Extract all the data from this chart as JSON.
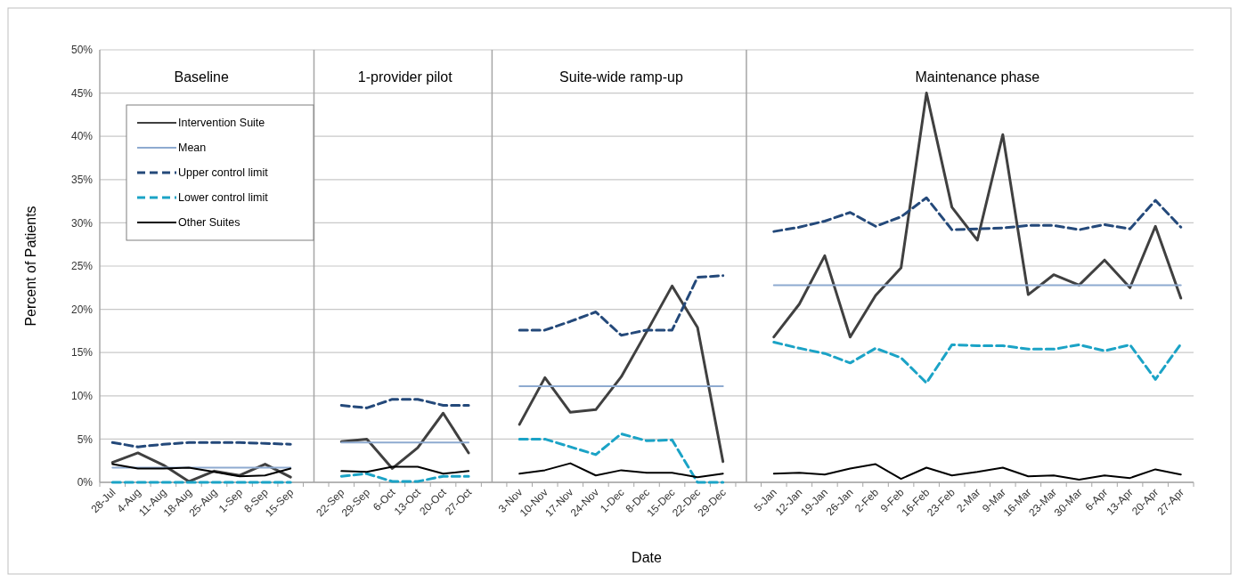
{
  "chart_data": {
    "type": "line",
    "xlabel": "Date",
    "ylabel": "Percent of Patients",
    "categories": [
      "28-Jul",
      "4-Aug",
      "11-Aug",
      "18-Aug",
      "25-Aug",
      "1-Sep",
      "8-Sep",
      "15-Sep",
      null,
      "22-Sep",
      "29-Sep",
      "6-Oct",
      "13-Oct",
      "20-Oct",
      "27-Oct",
      null,
      "3-Nov",
      "10-Nov",
      "17-Nov",
      "24-Nov",
      "1-Dec",
      "8-Dec",
      "15-Dec",
      "22-Dec",
      "29-Dec",
      null,
      "5-Jan",
      "12-Jan",
      "19-Jan",
      "26-Jan",
      "2-Feb",
      "9-Feb",
      "16-Feb",
      "23-Feb",
      "2-Mar",
      "9-Mar",
      "16-Mar",
      "23-Mar",
      "30-Mar",
      "6-Apr",
      "13-Apr",
      "20-Apr",
      "27-Apr"
    ],
    "series": [
      {
        "name": "Intervention Suite",
        "color": "#404040",
        "line_style": "solid",
        "values": [
          2.3,
          3.4,
          2.0,
          0.1,
          1.3,
          0.8,
          2.1,
          0.6,
          null,
          4.7,
          5.0,
          1.6,
          4.0,
          8.0,
          3.4,
          null,
          6.7,
          12.1,
          8.1,
          8.4,
          12.2,
          17.4,
          22.7,
          17.9,
          2.4,
          null,
          16.8,
          20.6,
          26.2,
          16.8,
          21.6,
          24.8,
          45.0,
          31.8,
          28.0,
          40.2,
          21.7,
          24.0,
          22.8,
          25.7,
          22.5,
          29.6,
          21.3
        ]
      },
      {
        "name": "Mean",
        "color": "#8eaad0",
        "line_style": "solid",
        "values": [
          1.7,
          1.7,
          1.7,
          1.7,
          1.7,
          1.7,
          1.7,
          1.7,
          null,
          4.6,
          4.6,
          4.6,
          4.6,
          4.6,
          4.6,
          null,
          11.1,
          11.1,
          11.1,
          11.1,
          11.1,
          11.1,
          11.1,
          11.1,
          11.1,
          null,
          22.8,
          22.8,
          22.8,
          22.8,
          22.8,
          22.8,
          22.8,
          22.8,
          22.8,
          22.8,
          22.8,
          22.8,
          22.8,
          22.8,
          22.8,
          22.8,
          22.8
        ]
      },
      {
        "name": "Upper control limit",
        "color": "#24497a",
        "line_style": "dashed",
        "values": [
          4.6,
          4.1,
          4.4,
          4.6,
          4.6,
          4.6,
          4.5,
          4.4,
          null,
          8.9,
          8.6,
          9.6,
          9.6,
          8.9,
          8.9,
          null,
          17.6,
          17.6,
          18.6,
          19.7,
          17.0,
          17.6,
          17.6,
          23.7,
          23.9,
          null,
          29.0,
          29.5,
          30.2,
          31.2,
          29.6,
          30.7,
          32.9,
          29.2,
          29.3,
          29.4,
          29.7,
          29.7,
          29.2,
          29.8,
          29.3,
          32.6,
          29.5
        ]
      },
      {
        "name": "Lower control limit",
        "color": "#1ba3c6",
        "line_style": "dashed",
        "values": [
          0,
          0,
          0,
          0,
          0,
          0,
          0,
          0,
          null,
          0.7,
          1.0,
          0.1,
          0.1,
          0.7,
          0.7,
          null,
          5.0,
          5.0,
          4.1,
          3.2,
          5.6,
          4.8,
          4.9,
          0,
          0,
          null,
          16.2,
          15.5,
          14.9,
          13.8,
          15.5,
          14.4,
          11.5,
          15.9,
          15.8,
          15.8,
          15.4,
          15.4,
          15.9,
          15.2,
          15.9,
          11.9,
          16.0
        ]
      },
      {
        "name": "Other Suites",
        "color": "#000000",
        "line_style": "solid",
        "values": [
          2.1,
          1.6,
          1.6,
          1.7,
          1.2,
          0.7,
          0.8,
          1.6,
          null,
          1.3,
          1.2,
          1.8,
          1.8,
          1.0,
          1.3,
          null,
          1.0,
          1.4,
          2.2,
          0.8,
          1.4,
          1.1,
          1.1,
          0.6,
          1.0,
          null,
          1.0,
          1.1,
          0.9,
          1.6,
          2.1,
          0.4,
          1.7,
          0.8,
          1.2,
          1.7,
          0.7,
          0.8,
          0.3,
          0.8,
          0.5,
          1.5,
          0.9
        ]
      }
    ],
    "ylim": [
      0,
      50
    ],
    "yticks": [
      {
        "value": 0,
        "label": "0%"
      },
      {
        "value": 5,
        "label": "5%"
      },
      {
        "value": 10,
        "label": "10%"
      },
      {
        "value": 15,
        "label": "15%"
      },
      {
        "value": 20,
        "label": "20%"
      },
      {
        "value": 25,
        "label": "25%"
      },
      {
        "value": 30,
        "label": "30%"
      },
      {
        "value": 35,
        "label": "35%"
      },
      {
        "value": 40,
        "label": "40%"
      },
      {
        "value": 45,
        "label": "45%"
      },
      {
        "value": 50,
        "label": "50%"
      }
    ],
    "annotations": [
      "Baseline",
      "1-provider pilot",
      "Suite-wide ramp-up",
      "Maintenance phase"
    ],
    "grid": "y",
    "legend": "top left",
    "marker": "none"
  }
}
